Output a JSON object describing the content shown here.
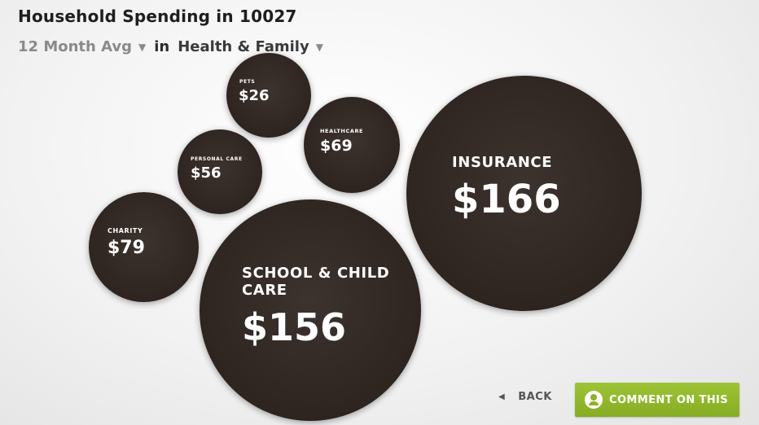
{
  "title": "Household Spending in 10027",
  "filters": {
    "period": "12 Month Avg",
    "connector": "in",
    "category": "Health & Family"
  },
  "bubbles": {
    "pets": {
      "label": "PETS",
      "value": "$26"
    },
    "healthcare": {
      "label": "HEALTHCARE",
      "value": "$69"
    },
    "personal_care": {
      "label": "PERSONAL CARE",
      "value": "$56"
    },
    "charity": {
      "label": "CHARITY",
      "value": "$79"
    },
    "school": {
      "label": "SCHOOL & CHILD CARE",
      "value": "$156"
    },
    "insurance": {
      "label": "INSURANCE",
      "value": "$166"
    }
  },
  "back_label": "BACK",
  "comment_label": "COMMENT ON THIS",
  "colors": {
    "bubble": "#2e2420",
    "accent_green": "#8cb32a"
  },
  "icons": {
    "dropdown": "caret-down-icon",
    "back": "left-triangle-icon",
    "comment": "person-bubble-icon"
  }
}
